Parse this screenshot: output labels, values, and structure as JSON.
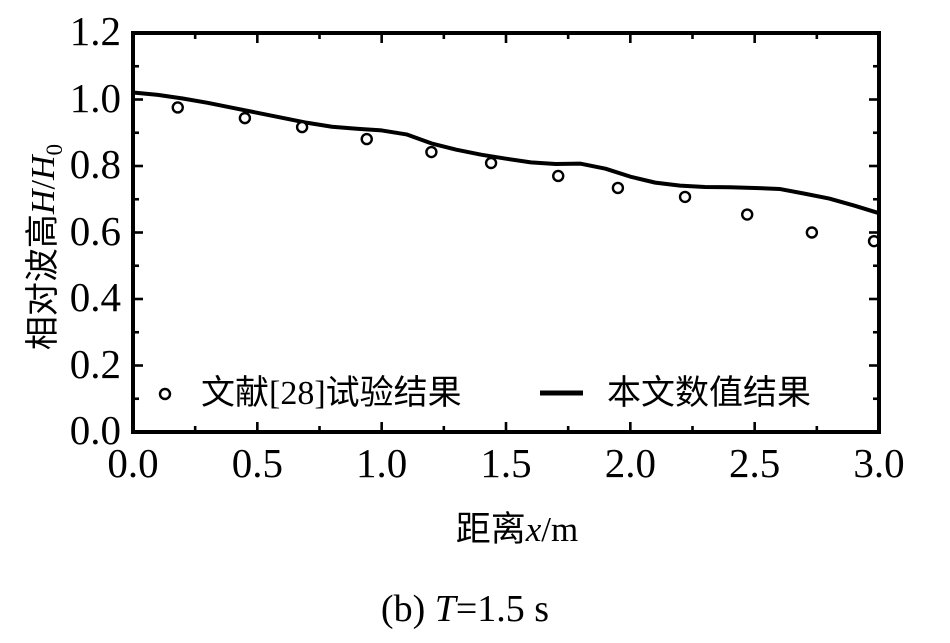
{
  "figure": {
    "background": "#ffffff",
    "ink_color": "#000000"
  },
  "axes": {
    "x_title": {
      "cjk": "距离",
      "var": "x",
      "unit": "/m"
    },
    "y_title": {
      "cjk": "相对波高",
      "var1": "H",
      "sep": "/",
      "var2": "H",
      "sub": "0"
    }
  },
  "legend": {
    "items": [
      {
        "marker": "open-circle",
        "label": "文献[28]试验结果"
      },
      {
        "marker": "solid-line",
        "label": "本文数值结果"
      }
    ]
  },
  "caption": {
    "prefix": "(b) ",
    "var": "T",
    "rest": "=1.5 s"
  },
  "chart_data": {
    "type": "line",
    "title": "",
    "xlabel": "距离x/m",
    "ylabel": "相对波高H/H0",
    "xlim": [
      0,
      3
    ],
    "ylim": [
      0,
      1.2
    ],
    "x_major_ticks": [
      0,
      0.5,
      1.0,
      1.5,
      2.0,
      2.5,
      3.0
    ],
    "x_minor_ticks": [
      0.25,
      0.75,
      1.25,
      1.75,
      2.25,
      2.75
    ],
    "y_major_ticks": [
      0,
      0.2,
      0.4,
      0.6,
      0.8,
      1.0,
      1.2
    ],
    "y_minor_ticks": [
      0.1,
      0.3,
      0.5,
      0.7,
      0.9,
      1.1
    ],
    "x_tick_labels": [
      "0.0",
      "0.5",
      "1.0",
      "1.5",
      "2.0",
      "2.5",
      "3.0"
    ],
    "y_tick_labels": [
      "0.0",
      "0.2",
      "0.4",
      "0.6",
      "0.8",
      "1.0",
      "1.2"
    ],
    "grid": false,
    "legend_position": "inside-bottom-left",
    "caption": "(b) T=1.5 s",
    "series": [
      {
        "name": "文献[28]试验结果",
        "type": "scatter",
        "marker": "open-circle",
        "x": [
          0.18,
          0.45,
          0.68,
          0.94,
          1.2,
          1.44,
          1.71,
          1.95,
          2.22,
          2.47,
          2.73,
          2.98
        ],
        "y": [
          0.976,
          0.944,
          0.917,
          0.881,
          0.842,
          0.809,
          0.77,
          0.734,
          0.707,
          0.654,
          0.6,
          0.574
        ]
      },
      {
        "name": "本文数值结果",
        "type": "line",
        "x": [
          0.0,
          0.1,
          0.2,
          0.3,
          0.4,
          0.5,
          0.6,
          0.7,
          0.8,
          0.9,
          1.0,
          1.1,
          1.2,
          1.3,
          1.4,
          1.5,
          1.6,
          1.7,
          1.8,
          1.9,
          2.0,
          2.1,
          2.2,
          2.3,
          2.4,
          2.5,
          2.6,
          2.7,
          2.8,
          2.9,
          3.0
        ],
        "y": [
          1.021,
          1.014,
          1.003,
          0.99,
          0.975,
          0.96,
          0.945,
          0.93,
          0.918,
          0.912,
          0.907,
          0.895,
          0.868,
          0.849,
          0.834,
          0.822,
          0.811,
          0.806,
          0.807,
          0.792,
          0.768,
          0.75,
          0.741,
          0.737,
          0.736,
          0.734,
          0.731,
          0.717,
          0.702,
          0.681,
          0.658
        ]
      }
    ]
  }
}
